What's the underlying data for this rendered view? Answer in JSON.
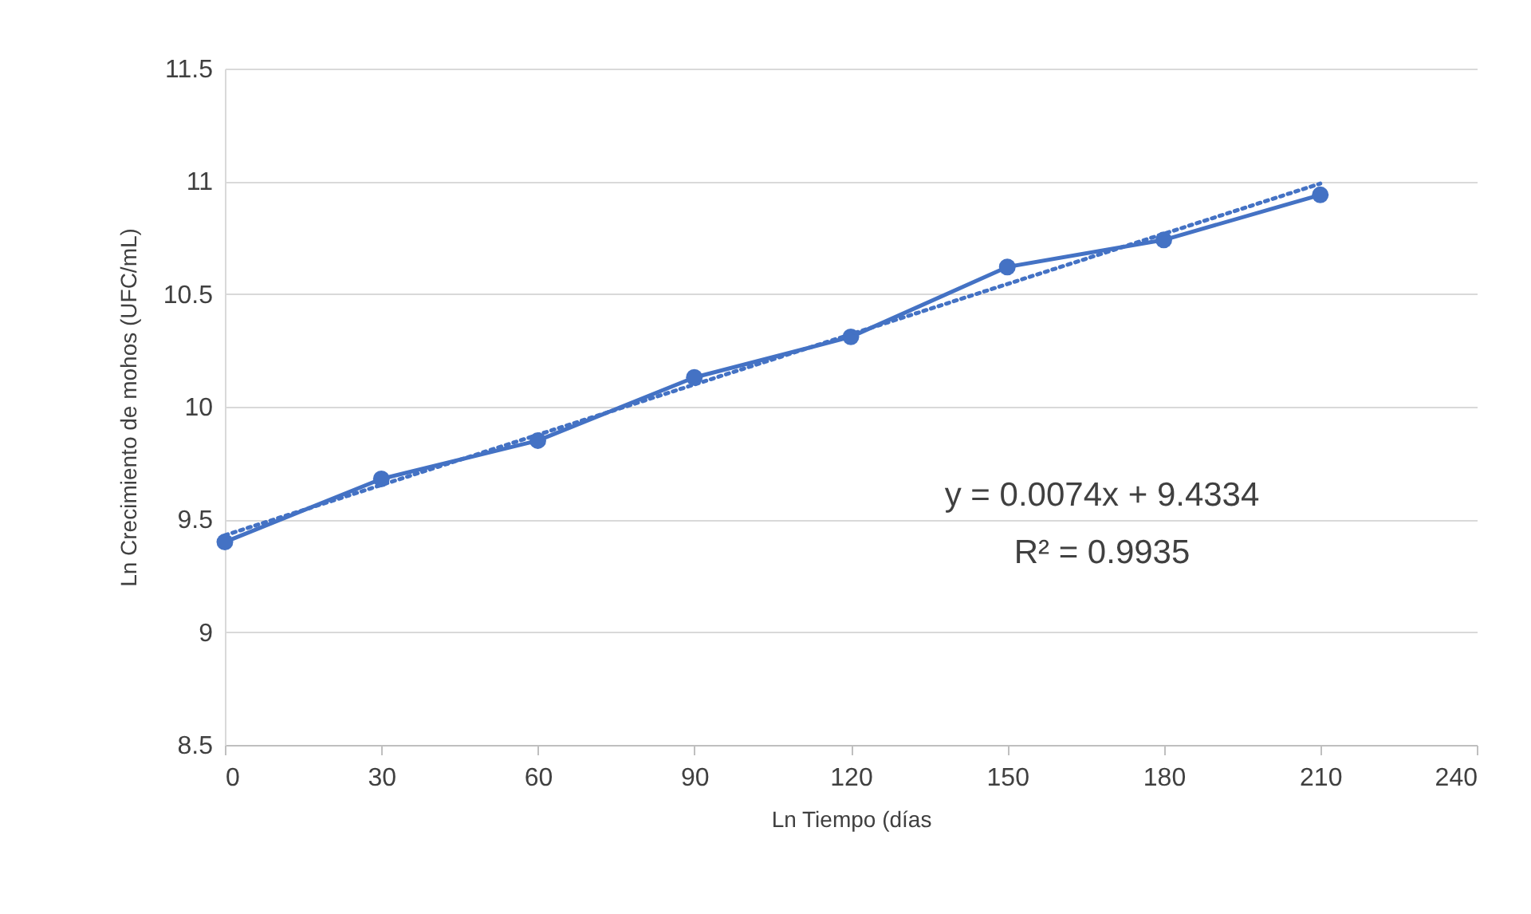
{
  "chart_data": {
    "type": "line",
    "xlabel": "Ln Tiempo (días",
    "ylabel": "Ln Crecimiento de mohos (UFC/mL)",
    "x": [
      0,
      30,
      60,
      90,
      120,
      150,
      180,
      210
    ],
    "series": [
      {
        "color": "#4472c4",
        "values": [
          9.4,
          9.68,
          9.85,
          10.13,
          10.31,
          10.62,
          10.74,
          10.94
        ],
        "marker": "circle",
        "line_style": "solid"
      },
      {
        "type": "line",
        "color": "#4472c4",
        "x": [
          0,
          210
        ],
        "values": [
          9.43,
          10.99
        ],
        "marker": "none",
        "line_style": "dotted"
      }
    ],
    "xlim": [
      0,
      240
    ],
    "xticks": [
      0,
      30,
      60,
      90,
      120,
      150,
      180,
      210,
      240
    ],
    "ylim": [
      8.5,
      11.5
    ],
    "yticks": [
      8.5,
      9,
      9.5,
      10,
      10.5,
      11,
      11.5
    ],
    "grid": "y",
    "legend": false,
    "annotations": [
      "y = 0.0074x + 9.4334",
      "R² = 0.9935"
    ]
  }
}
